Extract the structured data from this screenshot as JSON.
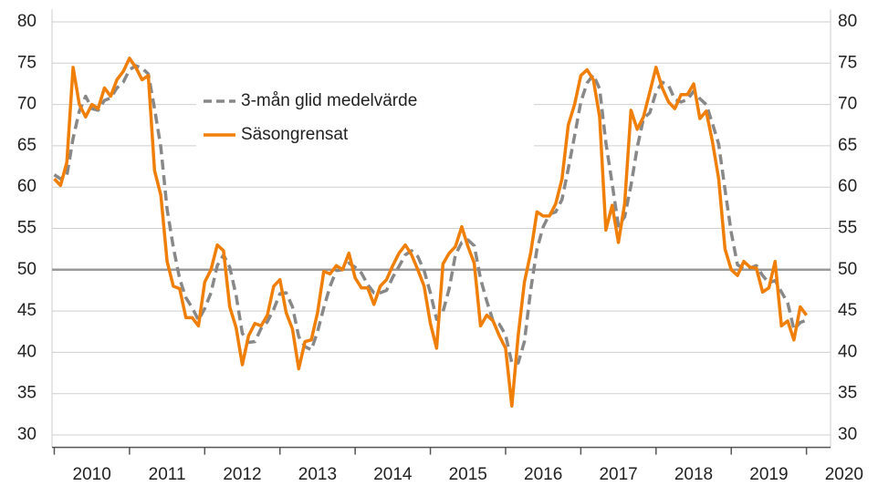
{
  "chart_data": {
    "type": "line",
    "x": [
      2010,
      2010.083,
      2010.167,
      2010.25,
      2010.333,
      2010.417,
      2010.5,
      2010.583,
      2010.667,
      2010.75,
      2010.833,
      2010.917,
      2011,
      2011.083,
      2011.167,
      2011.25,
      2011.333,
      2011.417,
      2011.5,
      2011.583,
      2011.667,
      2011.75,
      2011.833,
      2011.917,
      2012,
      2012.083,
      2012.167,
      2012.25,
      2012.333,
      2012.417,
      2012.5,
      2012.583,
      2012.667,
      2012.75,
      2012.833,
      2012.917,
      2013,
      2013.083,
      2013.167,
      2013.25,
      2013.333,
      2013.417,
      2013.5,
      2013.583,
      2013.667,
      2013.75,
      2013.833,
      2013.917,
      2014,
      2014.083,
      2014.167,
      2014.25,
      2014.333,
      2014.417,
      2014.5,
      2014.583,
      2014.667,
      2014.75,
      2014.833,
      2014.917,
      2015,
      2015.083,
      2015.167,
      2015.25,
      2015.333,
      2015.417,
      2015.5,
      2015.583,
      2015.667,
      2015.75,
      2015.833,
      2015.917,
      2016,
      2016.083,
      2016.167,
      2016.25,
      2016.333,
      2016.417,
      2016.5,
      2016.583,
      2016.667,
      2016.75,
      2016.833,
      2016.917,
      2017,
      2017.083,
      2017.167,
      2017.25,
      2017.333,
      2017.417,
      2017.5,
      2017.583,
      2017.667,
      2017.75,
      2017.833,
      2017.917,
      2018,
      2018.083,
      2018.167,
      2018.25,
      2018.333,
      2018.417,
      2018.5,
      2018.583,
      2018.667,
      2018.75,
      2018.833,
      2018.917,
      2019,
      2019.083,
      2019.167,
      2019.25,
      2019.333,
      2019.417,
      2019.5,
      2019.583,
      2019.667,
      2019.75,
      2019.833,
      2019.917,
      2020
    ],
    "series": [
      {
        "name": "3-mån glid medelvärde",
        "color": "#888888",
        "dash": true,
        "values": [
          61.5,
          61,
          61.4,
          65.9,
          69.2,
          71,
          69.5,
          69.3,
          70.5,
          70.8,
          72,
          72.7,
          74.2,
          74.7,
          74.4,
          73.7,
          69.5,
          64.8,
          57.3,
          52.7,
          48.9,
          46.6,
          45.4,
          43.9,
          45.3,
          47.2,
          50.5,
          51.8,
          50.3,
          46.9,
          42.3,
          41.2,
          41.3,
          42.9,
          43.7,
          45.2,
          47.1,
          47.2,
          45.5,
          41.9,
          40.7,
          40.3,
          42.5,
          45.4,
          48,
          49.9,
          50,
          50.8,
          50.3,
          49.6,
          48.2,
          47.2,
          47.2,
          47.5,
          49.1,
          50.4,
          51.8,
          52.3,
          51.6,
          49.9,
          47.2,
          44,
          44.9,
          47.7,
          51.8,
          53.3,
          53.6,
          52.9,
          48.9,
          46.2,
          43.8,
          43.4,
          42.1,
          38.7,
          38.7,
          41.3,
          47.5,
          52.5,
          55.2,
          56.7,
          57,
          58.5,
          62.2,
          66.2,
          70.3,
          72.6,
          73.6,
          71.9,
          65.4,
          60.4,
          55.3,
          56.4,
          60.2,
          64.8,
          68.3,
          69,
          71.5,
          72.7,
          72.3,
          70.6,
          70.3,
          70.6,
          71.6,
          70.7,
          70,
          67.7,
          65.2,
          59.7,
          54.5,
          50.6,
          50.1,
          50.2,
          50.5,
          49.3,
          48.4,
          48.7,
          47.3,
          46,
          42.8,
          43.6,
          43.9
        ]
      },
      {
        "name": "Säsongrensat",
        "color": "#f07f09",
        "dash": false,
        "values": [
          61,
          60.2,
          63,
          74.5,
          70,
          68.5,
          70,
          69.5,
          72,
          71,
          73,
          74,
          75.6,
          74.5,
          73,
          73.5,
          62,
          59,
          51,
          48,
          47.7,
          44.2,
          44.2,
          43.2,
          48.5,
          50,
          53,
          52.3,
          45.5,
          43,
          38.5,
          42,
          43.5,
          43.2,
          44.5,
          48,
          48.8,
          44.8,
          42.8,
          38,
          41.3,
          41.5,
          44.8,
          49.8,
          49.5,
          50.5,
          50,
          52,
          49,
          47.8,
          47.8,
          45.8,
          48,
          48.8,
          50.5,
          52,
          53,
          51.8,
          50,
          48,
          43.5,
          40.5,
          50.7,
          52,
          52.8,
          55.2,
          52.8,
          50.8,
          43.2,
          44.5,
          43.8,
          42,
          40.5,
          33.5,
          42,
          48.5,
          52,
          57,
          56.5,
          56.5,
          58,
          61,
          67.5,
          70,
          73.5,
          74.2,
          73,
          68.5,
          54.8,
          57.8,
          53.3,
          58,
          69.3,
          67,
          68.5,
          71.5,
          74.5,
          72,
          70.3,
          69.5,
          71.2,
          71.2,
          72.5,
          68.3,
          69.2,
          65.5,
          61,
          52.5,
          50,
          49.3,
          51,
          50.3,
          50.2,
          47.3,
          47.8,
          51,
          43.2,
          43.8,
          41.5,
          45.5,
          44.5
        ]
      }
    ],
    "xlim": [
      2009.97,
      2020.32
    ],
    "xticks": [
      2010,
      2011,
      2012,
      2013,
      2014,
      2015,
      2016,
      2017,
      2018,
      2019,
      2020
    ],
    "ylim": [
      28.5,
      81.5
    ],
    "yticks": [
      30,
      35,
      40,
      45,
      50,
      55,
      60,
      65,
      70,
      75,
      80
    ],
    "y2lim": [
      28.5,
      81.5
    ],
    "y2ticks": [
      30,
      35,
      40,
      45,
      50,
      55,
      60,
      65,
      70,
      75,
      80
    ],
    "reference_line": 50,
    "grid": true
  }
}
